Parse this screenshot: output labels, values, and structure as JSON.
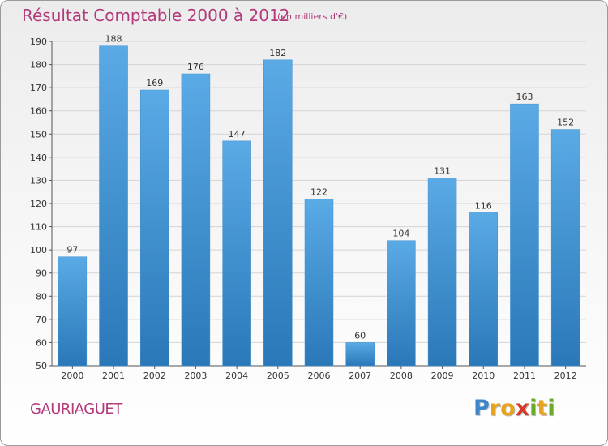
{
  "header": {
    "title": "Résultat Comptable 2000 à 2012",
    "subtitle": "(en milliers d'€)"
  },
  "footer": {
    "commune": "GAURIAGUET",
    "logo": {
      "letters": [
        "P",
        "r",
        "o",
        "x",
        "i",
        "t",
        "i"
      ],
      "colors": [
        "#3e86c9",
        "#e8a21b",
        "#e8a21b",
        "#d63a2a",
        "#6aaa2a",
        "#e8a21b",
        "#6aaa2a"
      ]
    }
  },
  "chart_data": {
    "type": "bar",
    "categories": [
      "2000",
      "2001",
      "2002",
      "2003",
      "2004",
      "2005",
      "2006",
      "2007",
      "2008",
      "2009",
      "2010",
      "2011",
      "2012"
    ],
    "values": [
      97,
      188,
      169,
      176,
      147,
      182,
      122,
      60,
      104,
      131,
      116,
      163,
      152
    ],
    "title": "Résultat Comptable 2000 à 2012",
    "subtitle": "(en milliers d'€)",
    "xlabel": "",
    "ylabel": "",
    "ylim": [
      50,
      190
    ],
    "yticks": [
      50,
      60,
      70,
      80,
      90,
      100,
      110,
      120,
      130,
      140,
      150,
      160,
      170,
      180,
      190
    ],
    "grid": true,
    "colors": {
      "bar_top": "#5aaae6",
      "bar_bottom": "#2a78b8",
      "grid": "#d4d4d4",
      "axis": "#555555",
      "text": "#333333"
    }
  }
}
